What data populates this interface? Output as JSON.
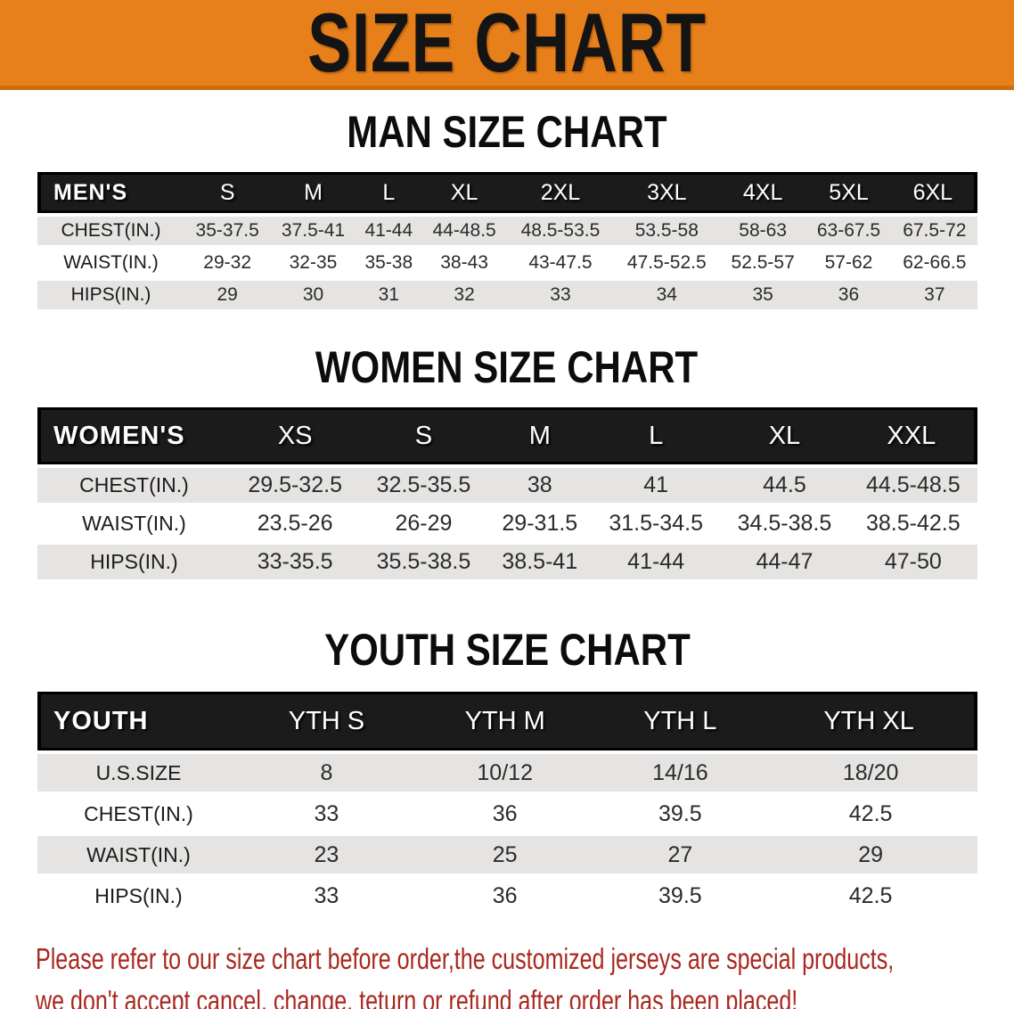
{
  "banner": {
    "title": "SIZE CHART"
  },
  "colors": {
    "banner_bg": "#e7801b",
    "header_bar_bg": "#1b1b1b",
    "row_stripe_bg": "#e5e4e2",
    "footer_text": "#a9281f"
  },
  "sections": [
    {
      "id": "mens",
      "title": "MAN SIZE CHART",
      "corner_label": "MEN'S",
      "columns": [
        "S",
        "M",
        "L",
        "XL",
        "2XL",
        "3XL",
        "4XL",
        "5XL",
        "6XL"
      ],
      "rows": [
        {
          "label": "CHEST(IN.)",
          "values": [
            "35-37.5",
            "37.5-41",
            "41-44",
            "44-48.5",
            "48.5-53.5",
            "53.5-58",
            "58-63",
            "63-67.5",
            "67.5-72"
          ]
        },
        {
          "label": "WAIST(IN.)",
          "values": [
            "29-32",
            "32-35",
            "35-38",
            "38-43",
            "43-47.5",
            "47.5-52.5",
            "52.5-57",
            "57-62",
            "62-66.5"
          ]
        },
        {
          "label": "HIPS(IN.)",
          "values": [
            "29",
            "30",
            "31",
            "32",
            "33",
            "34",
            "35",
            "36",
            "37"
          ]
        }
      ]
    },
    {
      "id": "womens",
      "title": "WOMEN SIZE CHART",
      "corner_label": "WOMEN'S",
      "columns": [
        "XS",
        "S",
        "M",
        "L",
        "XL",
        "XXL"
      ],
      "rows": [
        {
          "label": "CHEST(IN.)",
          "values": [
            "29.5-32.5",
            "32.5-35.5",
            "38",
            "41",
            "44.5",
            "44.5-48.5"
          ]
        },
        {
          "label": "WAIST(IN.)",
          "values": [
            "23.5-26",
            "26-29",
            "29-31.5",
            "31.5-34.5",
            "34.5-38.5",
            "38.5-42.5"
          ]
        },
        {
          "label": "HIPS(IN.)",
          "values": [
            "33-35.5",
            "35.5-38.5",
            "38.5-41",
            "41-44",
            "44-47",
            "47-50"
          ]
        }
      ]
    },
    {
      "id": "youth",
      "title": "YOUTH SIZE CHART",
      "corner_label": "YOUTH",
      "columns": [
        "YTH S",
        "YTH M",
        "YTH L",
        "YTH XL"
      ],
      "rows": [
        {
          "label": "U.S.SIZE",
          "values": [
            "8",
            "10/12",
            "14/16",
            "18/20"
          ]
        },
        {
          "label": "CHEST(IN.)",
          "values": [
            "33",
            "36",
            "39.5",
            "42.5"
          ]
        },
        {
          "label": "WAIST(IN.)",
          "values": [
            "23",
            "25",
            "27",
            "29"
          ]
        },
        {
          "label": "HIPS(IN.)",
          "values": [
            "33",
            "36",
            "39.5",
            "42.5"
          ]
        }
      ]
    }
  ],
  "footer": {
    "line1": "Please refer to our size chart before order,the customized jerseys are special products,",
    "line2": "we don't accept cancel, change, teturn or refund after order has been placed!"
  }
}
